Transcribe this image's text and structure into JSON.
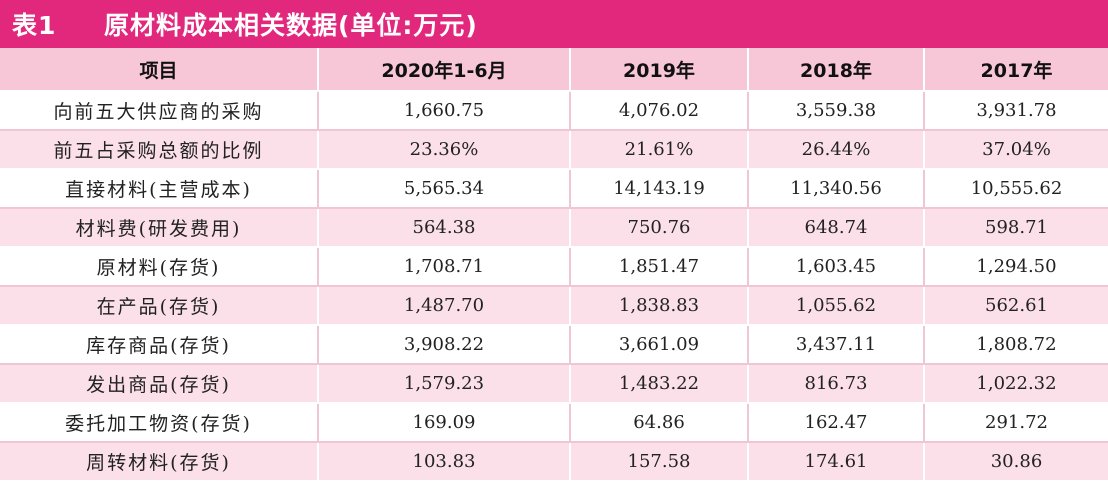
{
  "title": {
    "label": "表1",
    "text": "原材料成本相关数据(单位:万元)"
  },
  "table": {
    "headers": [
      "项目",
      "2020年1-6月",
      "2019年",
      "2018年",
      "2017年"
    ],
    "rows": [
      [
        "向前五大供应商的采购",
        "1,660.75",
        "4,076.02",
        "3,559.38",
        "3,931.78"
      ],
      [
        "前五占采购总额的比例",
        "23.36%",
        "21.61%",
        "26.44%",
        "37.04%"
      ],
      [
        "直接材料(主营成本)",
        "5,565.34",
        "14,143.19",
        "11,340.56",
        "10,555.62"
      ],
      [
        "材料费(研发费用)",
        "564.38",
        "750.76",
        "648.74",
        "598.71"
      ],
      [
        "原材料(存货)",
        "1,708.71",
        "1,851.47",
        "1,603.45",
        "1,294.50"
      ],
      [
        "在产品(存货)",
        "1,487.70",
        "1,838.83",
        "1,055.62",
        "562.61"
      ],
      [
        "库存商品(存货)",
        "3,908.22",
        "3,661.09",
        "3,437.11",
        "1,808.72"
      ],
      [
        "发出商品(存货)",
        "1,579.23",
        "1,483.22",
        "816.73",
        "1,022.32"
      ],
      [
        "委托加工物资(存货)",
        "169.09",
        "64.86",
        "162.47",
        "291.72"
      ],
      [
        "周转材料(存货)",
        "103.83",
        "157.58",
        "174.61",
        "30.86"
      ]
    ]
  }
}
